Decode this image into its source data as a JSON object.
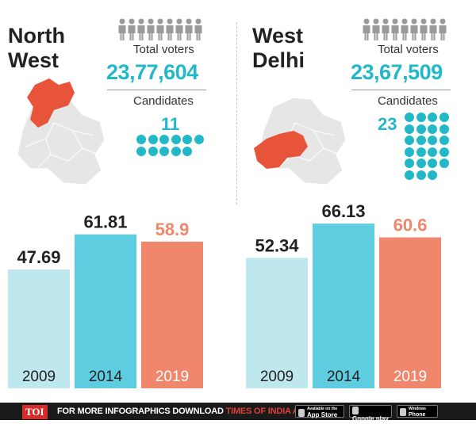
{
  "panels": [
    {
      "region": [
        "North",
        "West"
      ],
      "total_voters_label": "Total voters",
      "total_voters": "23,77,604",
      "candidates_label": "Candidates",
      "candidates": "11"
    },
    {
      "region": [
        "West",
        "Delhi"
      ],
      "total_voters_label": "Total voters",
      "total_voters": "23,67,509",
      "candidates_label": "Candidates",
      "candidates": "23"
    }
  ],
  "colors": {
    "teal": "#22b8c8",
    "map_highlight": "#e8543a",
    "map_base": "#e6e6e6",
    "bar_2009": "#bfe7ee",
    "bar_2014": "#5fcde0",
    "bar_2019": "#f0866b"
  },
  "icons": {
    "voters": "people-row-icon",
    "candidates": "candidate-dots-icon",
    "map": "delhi-map-icon"
  },
  "chart_data": [
    {
      "type": "bar",
      "categories": [
        "2009",
        "2014",
        "2019"
      ],
      "values": [
        47.69,
        61.81,
        58.9
      ],
      "value_labels": [
        "47.69",
        "61.81",
        "58.9"
      ],
      "ylim": [
        0,
        70
      ]
    },
    {
      "type": "bar",
      "categories": [
        "2009",
        "2014",
        "2019"
      ],
      "values": [
        52.34,
        66.13,
        60.6
      ],
      "value_labels": [
        "52.34",
        "66.13",
        "60.6"
      ],
      "ylim": [
        0,
        70
      ]
    }
  ],
  "footer": {
    "brand": "TOI",
    "text": "FOR MORE INFOGRAPHICS DOWNLOAD",
    "app_name": "TIMES OF INDIA APP",
    "stores": [
      {
        "small": "Available on the",
        "name": "App Store"
      },
      {
        "small": "",
        "name": "Google play"
      },
      {
        "small": "Windows",
        "name": "Phone"
      }
    ]
  }
}
